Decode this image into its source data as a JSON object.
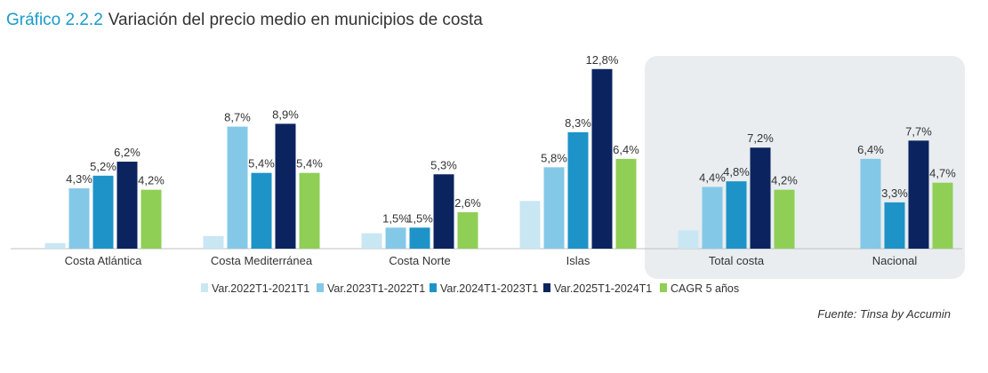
{
  "header": {
    "number": "Gráfico 2.2.2",
    "title": "Variación del precio medio en municipios de costa"
  },
  "source": "Fuente: Tinsa by Accumin",
  "colors": {
    "title_accent": "#1a9bc9",
    "highlight_bg": "#e9edf0"
  },
  "chart_data": {
    "type": "bar",
    "title": "Variación del precio medio en municipios de costa",
    "categories": [
      "Costa Atlántica",
      "Costa Mediterránea",
      "Costa Norte",
      "Islas",
      "Total costa",
      "Nacional"
    ],
    "series": [
      {
        "name": "Var.2022T1-2021T1",
        "color": "#c9e6f3",
        "values": [
          0.4,
          0.9,
          1.1,
          3.4,
          1.3,
          null
        ],
        "labels": [
          "",
          "",
          "",
          "",
          "",
          ""
        ]
      },
      {
        "name": "Var.2023T1-2022T1",
        "color": "#84c8e8",
        "values": [
          4.3,
          8.7,
          1.5,
          5.8,
          4.4,
          6.4
        ],
        "labels": [
          "4,3%",
          "8,7%",
          "1,5%",
          "5,8%",
          "4,4%",
          "6,4%"
        ]
      },
      {
        "name": "Var.2024T1-2023T1",
        "color": "#1e93c8",
        "values": [
          5.2,
          5.4,
          1.5,
          8.3,
          4.8,
          3.3
        ],
        "labels": [
          "5,2%",
          "5,4%",
          "1,5%",
          "8,3%",
          "4,8%",
          "3,3%"
        ]
      },
      {
        "name": "Var.2025T1-2024T1",
        "color": "#0b2460",
        "values": [
          6.2,
          8.9,
          5.3,
          12.8,
          7.2,
          7.7
        ],
        "labels": [
          "6,2%",
          "8,9%",
          "5,3%",
          "12,8%",
          "7,2%",
          "7,7%"
        ]
      },
      {
        "name": "CAGR 5 años",
        "color": "#8fcf56",
        "values": [
          4.2,
          5.4,
          2.6,
          6.4,
          4.2,
          4.7
        ],
        "labels": [
          "4,2%",
          "5,4%",
          "2,6%",
          "6,4%",
          "4,2%",
          "4,7%"
        ]
      }
    ],
    "ylim": [
      0,
      14
    ],
    "legend_position": "bottom",
    "highlighted_categories": [
      "Total costa",
      "Nacional"
    ]
  }
}
